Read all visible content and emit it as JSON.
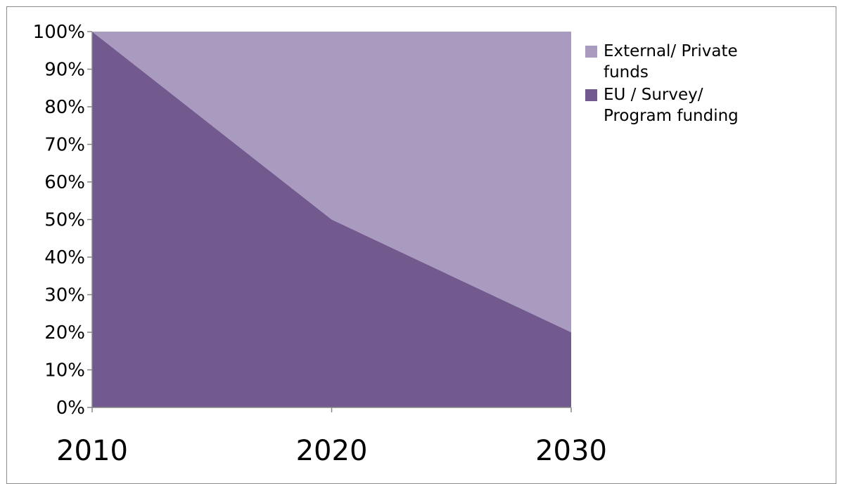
{
  "chart_data": {
    "type": "area",
    "stacked": "percent",
    "x": [
      "2010",
      "2020",
      "2030"
    ],
    "series": [
      {
        "name": "EU / Survey/ Program funding",
        "values": [
          100,
          50,
          20
        ],
        "color": "#725A8F"
      },
      {
        "name": "External/ Private funds",
        "values": [
          0,
          50,
          80
        ],
        "color": "#A99ABF"
      }
    ],
    "y_ticks": [
      "0%",
      "10%",
      "20%",
      "30%",
      "40%",
      "50%",
      "60%",
      "70%",
      "80%",
      "90%",
      "100%"
    ],
    "ylim": [
      0,
      100
    ],
    "grid": false,
    "legend_position": "top-right",
    "legend": [
      {
        "label": "External/ Private funds",
        "color": "#A99ABF"
      },
      {
        "label": "EU / Survey/ Program funding",
        "color": "#725A8F"
      }
    ]
  }
}
